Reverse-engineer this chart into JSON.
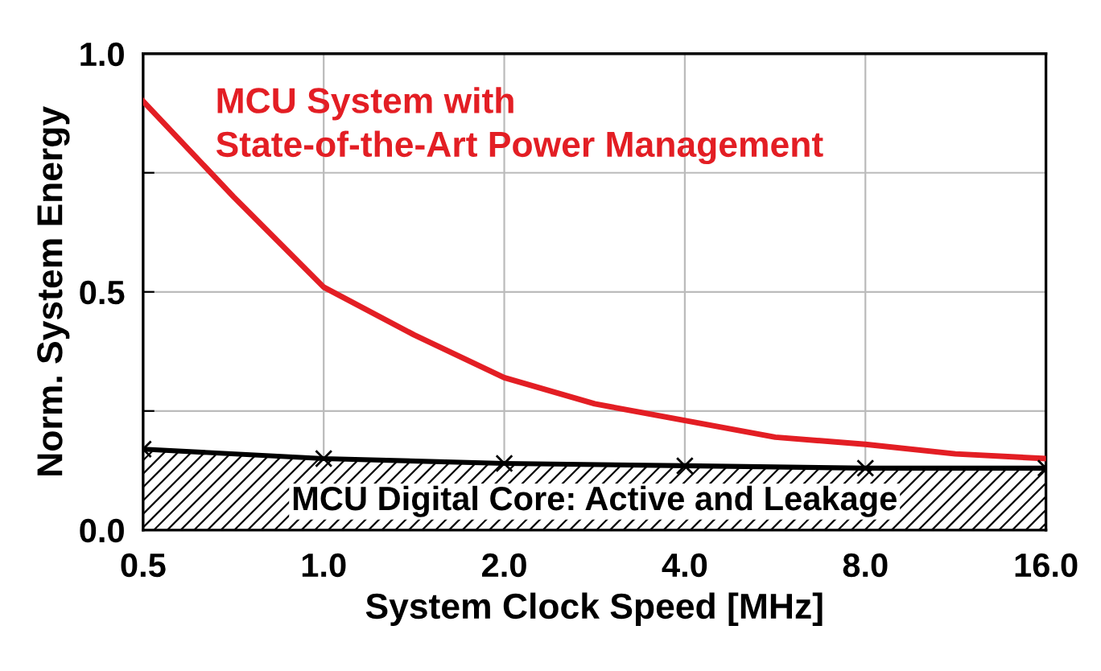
{
  "chart_data": {
    "type": "line",
    "xlabel": "System Clock Speed [MHz]",
    "ylabel": "Norm. System Energy",
    "log": "x",
    "x": [
      0.5,
      0.707,
      1.0,
      1.414,
      2.0,
      2.83,
      4.0,
      5.66,
      8.0,
      11.3,
      16.0
    ],
    "series": [
      {
        "name": "MCU System with\nState-of-the-Art Power Management",
        "color": "#e31e24",
        "marker": "none",
        "values": [
          0.9,
          0.7,
          0.51,
          0.41,
          0.32,
          0.265,
          0.23,
          0.195,
          0.18,
          0.16,
          0.15
        ]
      },
      {
        "name": "MCU Digital Core: Active and Leakage",
        "color": "#000000",
        "type": "area",
        "marker": "cross",
        "x": [
          0.5,
          1.0,
          2.0,
          4.0,
          8.0,
          16.0
        ],
        "values": [
          0.17,
          0.15,
          0.14,
          0.135,
          0.13,
          0.13
        ]
      }
    ],
    "xlim": [
      0.5,
      16.0
    ],
    "xticks": [
      {
        "value": 0.5,
        "label": "0.5"
      },
      {
        "value": 1.0,
        "label": "1.0"
      },
      {
        "value": 2.0,
        "label": "2.0"
      },
      {
        "value": 4.0,
        "label": "4.0"
      },
      {
        "value": 8.0,
        "label": "8.0"
      },
      {
        "value": 16.0,
        "label": "16.0"
      }
    ],
    "ylim": [
      0.0,
      1.0
    ],
    "yticks": [
      {
        "value": 0.0,
        "label": "0.0"
      },
      {
        "value": 0.25,
        "label": null
      },
      {
        "value": 0.5,
        "label": "0.5"
      },
      {
        "value": 0.75,
        "label": null
      },
      {
        "value": 1.0,
        "label": "1.0"
      }
    ],
    "grid": true,
    "legend": false
  }
}
